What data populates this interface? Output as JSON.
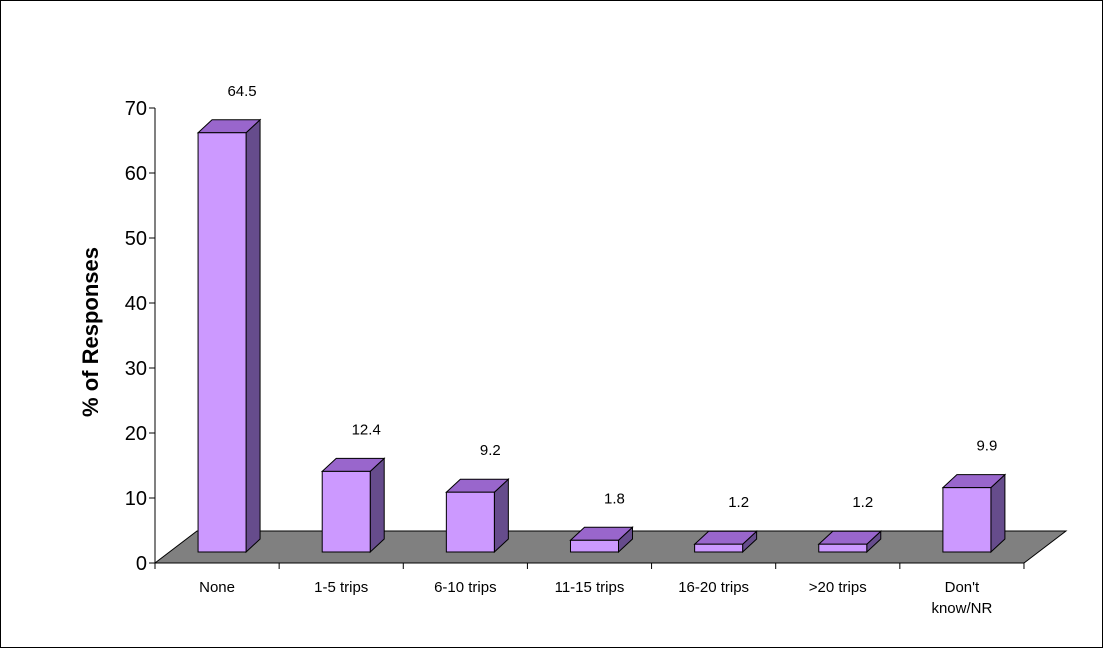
{
  "chart_data": {
    "type": "bar",
    "title": "",
    "xlabel": "",
    "ylabel": "% of Responses",
    "ylim": [
      0,
      70
    ],
    "yticks": [
      0,
      10,
      20,
      30,
      40,
      50,
      60,
      70
    ],
    "categories": [
      "None",
      "1-5 trips",
      "6-10 trips",
      "11-15 trips",
      "16-20 trips",
      ">20 trips",
      "Don't know/NR"
    ],
    "values": [
      64.5,
      12.4,
      9.2,
      1.8,
      1.2,
      1.2,
      9.9
    ],
    "data_labels": [
      "64.5",
      "12.4",
      "9.2",
      "1.8",
      "1.2",
      "1.2",
      "9.9"
    ],
    "grid": false,
    "legend": "none",
    "style": "3d-column",
    "colors": {
      "bar_front": "#cc99ff",
      "bar_top": "#9966cc",
      "bar_side": "#664c8c",
      "floor": "#808080",
      "border": "#000000"
    }
  }
}
